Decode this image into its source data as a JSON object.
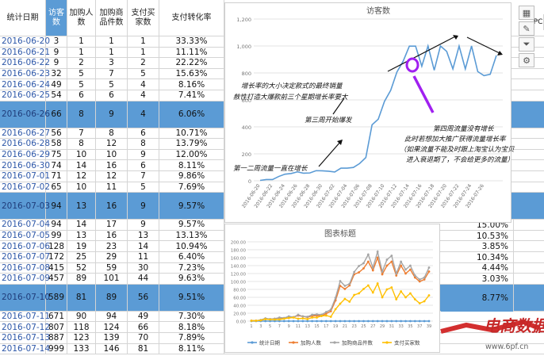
{
  "table": {
    "headers": [
      "统计日期",
      "访客数",
      "加购人数",
      "加购商品件数",
      "支付买家数",
      "支付转化率"
    ],
    "rows": [
      [
        "2016-06-20",
        "3",
        "1",
        "1",
        "1",
        "33.33%"
      ],
      [
        "2016-06-21",
        "9",
        "1",
        "1",
        "1",
        "11.11%"
      ],
      [
        "2016-06-22",
        "9",
        "2",
        "3",
        "2",
        "22.22%"
      ],
      [
        "2016-06-23",
        "32",
        "5",
        "7",
        "5",
        "15.63%"
      ],
      [
        "2016-06-24",
        "49",
        "5",
        "5",
        "4",
        "8.16%"
      ],
      [
        "2016-06-25",
        "54",
        "6",
        "6",
        "4",
        "7.41%"
      ],
      [
        "2016-06-26",
        "66",
        "8",
        "9",
        "4",
        "6.06%"
      ],
      [
        "2016-06-27",
        "56",
        "7",
        "8",
        "6",
        "10.71%"
      ],
      [
        "2016-06-28",
        "58",
        "8",
        "12",
        "8",
        "13.79%"
      ],
      [
        "2016-06-29",
        "75",
        "10",
        "10",
        "9",
        "12.00%"
      ],
      [
        "2016-06-30",
        "74",
        "14",
        "16",
        "6",
        "8.11%"
      ],
      [
        "2016-07-01",
        "71",
        "12",
        "12",
        "7",
        "9.86%"
      ],
      [
        "2016-07-02",
        "65",
        "10",
        "11",
        "5",
        "7.69%"
      ],
      [
        "2016-07-03",
        "94",
        "13",
        "16",
        "9",
        "9.57%"
      ],
      [
        "2016-07-04",
        "94",
        "14",
        "17",
        "9",
        "9.57%"
      ],
      [
        "2016-07-05",
        "99",
        "13",
        "16",
        "13",
        "13.13%"
      ],
      [
        "2016-07-06",
        "128",
        "19",
        "23",
        "14",
        "10.94%"
      ],
      [
        "2016-07-07",
        "172",
        "25",
        "29",
        "11",
        "6.40%"
      ],
      [
        "2016-07-08",
        "415",
        "52",
        "59",
        "30",
        "7.23%"
      ],
      [
        "2016-07-09",
        "457",
        "89",
        "101",
        "44",
        "9.63%"
      ],
      [
        "2016-07-10",
        "589",
        "81",
        "89",
        "56",
        "9.51%"
      ],
      [
        "2016-07-11",
        "671",
        "90",
        "94",
        "49",
        "7.30%"
      ],
      [
        "2016-07-12",
        "807",
        "118",
        "124",
        "66",
        "8.18%"
      ],
      [
        "2016-07-13",
        "887",
        "123",
        "139",
        "70",
        "7.89%"
      ],
      [
        "2016-07-14",
        "999",
        "133",
        "146",
        "81",
        "8.11%"
      ]
    ],
    "highlighted_rows": [
      6,
      13,
      20
    ],
    "extra_col_header": "PC",
    "extra_col_values": {
      "14": "15.00%",
      "15": "10.53%",
      "16": "3.85%",
      "17": "10.34%",
      "18": "4.44%",
      "19": "3.03%",
      "20": "8.77%"
    }
  },
  "chart1": {
    "title": "访客数",
    "annotations": {
      "line1": "增长率的大小决定款式的最终销量",
      "line2": "赦性打造大爆款前三个星期增长率要大",
      "week3": "第三周开始爆发",
      "week12": "第一二周流量一直在增长",
      "week4_l1": "第四周流量没有增长",
      "week4_l2": "此时若想加大推广获得流量增长率",
      "week4_l3": "（如果流量不能及时跟上淘宝认为宝贝",
      "week4_l4": "进入衰退期了，不会给更多的流量）"
    }
  },
  "chart2": {
    "title": "图表标题",
    "legend": [
      "统计日期",
      "加购人数",
      "加购商品件数",
      "支付买家数"
    ]
  },
  "chart_data": [
    {
      "type": "line",
      "title": "访客数",
      "categories": [
        "2016-06-20",
        "2016-06-21",
        "2016-06-22",
        "2016-06-23",
        "2016-06-24",
        "2016-06-25",
        "2016-06-26",
        "2016-06-27",
        "2016-06-28",
        "2016-06-29",
        "2016-06-30",
        "2016-07-01",
        "2016-07-02",
        "2016-07-03",
        "2016-07-04",
        "2016-07-05",
        "2016-07-06",
        "2016-07-07",
        "2016-07-08",
        "2016-07-09",
        "2016-07-10",
        "2016-07-11",
        "2016-07-12",
        "2016-07-13",
        "2016-07-14",
        "2016-07-15",
        "2016-07-16",
        "2016-07-17",
        "2016-07-18",
        "2016-07-19",
        "2016-07-20",
        "2016-07-21",
        "2016-07-22",
        "2016-07-23",
        "2016-07-24",
        "2016-07-25",
        "2016-07-26",
        "2016-07-27",
        "2016-07-28"
      ],
      "tick_labels": [
        "2016-06-20",
        "2016-06-22",
        "2016-06-24",
        "2016-06-26",
        "2016-06-28",
        "2016-06-30",
        "2016-07-02",
        "2016-07-04",
        "2016-07-06",
        "2016-07-08",
        "2016-07-10",
        "2016-07-12",
        "2016-07-14",
        "2016-07-16",
        "2016-07-18",
        "2016-07-20",
        "2016-07-22",
        "2016-07-24",
        "2016-07-26"
      ],
      "values": [
        3,
        9,
        9,
        32,
        49,
        54,
        66,
        56,
        58,
        75,
        74,
        71,
        65,
        94,
        94,
        99,
        128,
        172,
        415,
        457,
        589,
        671,
        807,
        887,
        999,
        999,
        850,
        1000,
        820,
        1000,
        960,
        830,
        1000,
        830,
        1000,
        810,
        780,
        790,
        930
      ],
      "ylim": [
        0,
        1200
      ],
      "yticks": [
        "0",
        "200",
        "400",
        "600",
        "800",
        "1,000",
        "1,200"
      ],
      "line_color": "#5b9bd5",
      "grid": true
    },
    {
      "type": "line",
      "title": "图表标题",
      "yticks": [
        "0.00",
        "20.00",
        "40.00",
        "60.00",
        "80.00",
        "100.00",
        "120.00",
        "140.00",
        "160.00",
        "180.00",
        "200.00"
      ],
      "ylim": [
        0,
        200
      ],
      "xticks": [
        "1",
        "3",
        "5",
        "7",
        "9",
        "11",
        "13",
        "15",
        "17",
        "19",
        "21",
        "23",
        "25",
        "27",
        "29",
        "31",
        "33",
        "35",
        "37",
        "39"
      ],
      "legend_position": "bottom",
      "series": [
        {
          "name": "统计日期",
          "color": "#5b9bd5",
          "values": [
            0,
            0,
            0,
            0,
            0,
            0,
            0,
            0,
            0,
            0,
            0,
            0,
            0,
            0,
            0,
            0,
            0,
            0,
            0,
            0,
            0,
            0,
            0,
            0,
            0,
            0,
            0,
            0,
            0,
            0,
            0,
            0,
            0,
            0,
            0,
            0,
            0,
            0,
            0
          ]
        },
        {
          "name": "加购人数",
          "color": "#ed7d31",
          "values": [
            1,
            1,
            2,
            5,
            5,
            6,
            8,
            7,
            8,
            10,
            14,
            12,
            10,
            13,
            14,
            13,
            19,
            25,
            52,
            89,
            81,
            90,
            118,
            123,
            133,
            150,
            128,
            160,
            118,
            140,
            150,
            115,
            140,
            120,
            130,
            110,
            100,
            105,
            125
          ]
        },
        {
          "name": "加购商品件数",
          "color": "#a5a5a5",
          "values": [
            1,
            1,
            3,
            7,
            5,
            6,
            9,
            8,
            12,
            10,
            16,
            12,
            11,
            16,
            17,
            16,
            23,
            29,
            59,
            101,
            89,
            94,
            124,
            139,
            146,
            168,
            135,
            175,
            125,
            155,
            165,
            120,
            150,
            130,
            140,
            115,
            105,
            110,
            135
          ]
        },
        {
          "name": "支付买家数",
          "color": "#ffc000",
          "values": [
            1,
            1,
            2,
            5,
            4,
            4,
            4,
            6,
            8,
            9,
            6,
            7,
            5,
            9,
            9,
            13,
            14,
            11,
            30,
            44,
            56,
            49,
            66,
            70,
            81,
            90,
            72,
            95,
            60,
            80,
            85,
            55,
            75,
            60,
            70,
            55,
            45,
            50,
            65
          ]
        }
      ]
    }
  ],
  "watermark": {
    "brand": "电商数据",
    "sub": "www.6pf.cn"
  }
}
